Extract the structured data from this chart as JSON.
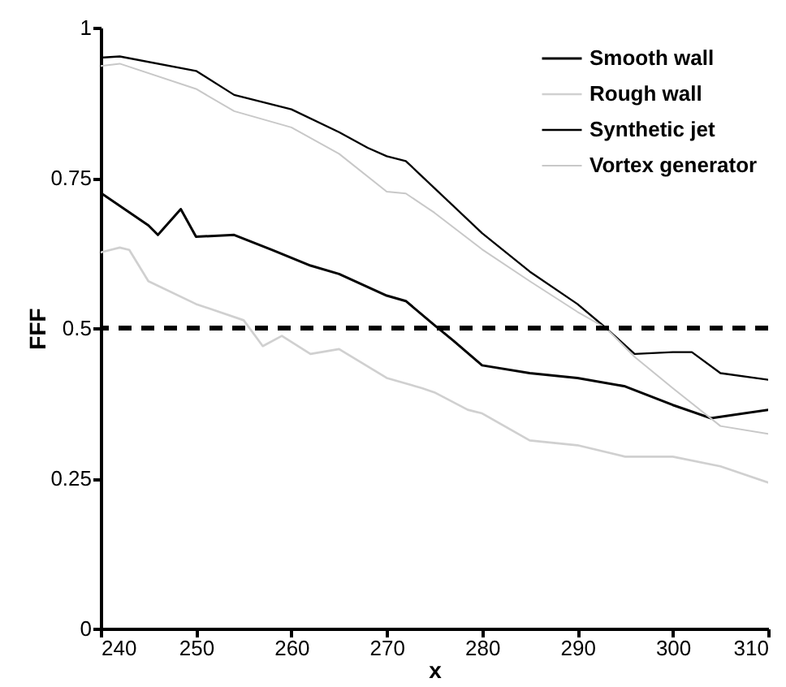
{
  "chart_data": {
    "type": "line",
    "xlabel": "x",
    "ylabel": "FFF",
    "xlim": [
      240,
      310
    ],
    "xticks": [
      240,
      250,
      260,
      270,
      280,
      290,
      300,
      310
    ],
    "ylim": [
      0,
      1
    ],
    "yticks": [
      0,
      0.25,
      0.5,
      0.75,
      1
    ],
    "grid": false,
    "legend": "top right",
    "line_style": "solid",
    "ref_lines": [
      {
        "axis": "y",
        "value": 0.5,
        "color": "#000000",
        "line_style": "dashed"
      }
    ],
    "series": [
      {
        "name": "Smooth wall",
        "color": "#000000",
        "x": [
          240,
          245,
          246,
          248.4,
          250,
          254,
          258,
          262,
          265,
          270,
          272,
          275,
          277,
          280,
          285,
          290,
          295,
          300,
          304,
          310
        ],
        "values": [
          0.725,
          0.671,
          0.655,
          0.698,
          0.652,
          0.655,
          0.63,
          0.604,
          0.59,
          0.554,
          0.545,
          0.505,
          0.479,
          0.438,
          0.425,
          0.417,
          0.403,
          0.372,
          0.35,
          0.364
        ]
      },
      {
        "name": "Rough wall",
        "color": "#d0d0d0",
        "x": [
          240,
          242,
          243,
          245,
          250,
          255,
          257,
          259,
          262,
          265,
          270,
          273.7,
          275,
          278.5,
          280,
          285,
          290,
          295,
          300,
          305,
          310
        ],
        "values": [
          0.626,
          0.634,
          0.63,
          0.578,
          0.54,
          0.513,
          0.47,
          0.487,
          0.457,
          0.465,
          0.417,
          0.4,
          0.393,
          0.364,
          0.358,
          0.313,
          0.305,
          0.286,
          0.286,
          0.27,
          0.243
        ]
      },
      {
        "name": "Synthetic jet",
        "color": "#000000",
        "x": [
          240,
          242,
          250,
          254,
          260,
          265,
          268,
          270,
          272,
          275,
          280,
          285,
          290,
          293,
          296,
          300,
          302,
          305,
          310
        ],
        "values": [
          0.95,
          0.952,
          0.928,
          0.888,
          0.864,
          0.826,
          0.8,
          0.786,
          0.778,
          0.733,
          0.658,
          0.594,
          0.54,
          0.5,
          0.457,
          0.46,
          0.46,
          0.425,
          0.414
        ]
      },
      {
        "name": "Vortex generator",
        "color": "#c8c8c8",
        "x": [
          240,
          242,
          250,
          254,
          260,
          265,
          270,
          272,
          275,
          280,
          285,
          290,
          293,
          296,
          300,
          305,
          310
        ],
        "values": [
          0.936,
          0.94,
          0.898,
          0.861,
          0.834,
          0.79,
          0.727,
          0.724,
          0.692,
          0.631,
          0.578,
          0.527,
          0.5,
          0.452,
          0.4,
          0.337,
          0.324
        ]
      }
    ]
  }
}
